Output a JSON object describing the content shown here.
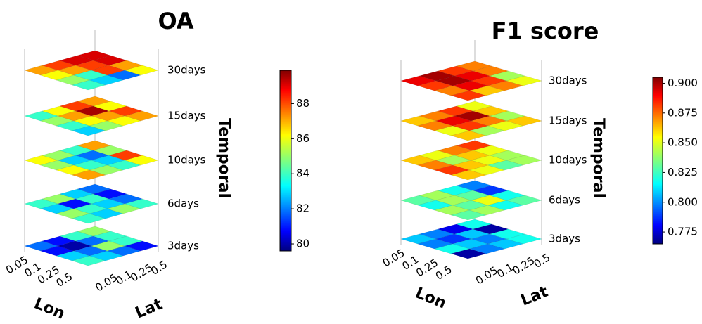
{
  "chart_data": [
    {
      "type": "heatmap3d",
      "title": "OA",
      "x_label": "Lon",
      "y_label": "Lat",
      "z_label": "Temporal",
      "x_categories": [
        "0.05",
        "0.1",
        "0.25",
        "0.5"
      ],
      "y_categories": [
        "0.05",
        "0.1",
        "0.25",
        "0.5"
      ],
      "colormap": "jet",
      "layers": [
        {
          "name": "3days",
          "values": [
            [
              82,
              81,
              84,
              85
            ],
            [
              81,
              80,
              82,
              84
            ],
            [
              83,
              82,
              85,
              84
            ],
            [
              84,
              83,
              82,
              81
            ]
          ]
        },
        {
          "name": "6days",
          "values": [
            [
              84,
              85,
              83,
              82
            ],
            [
              83,
              81,
              84,
              81
            ],
            [
              85,
              84,
              83,
              82
            ],
            [
              84,
              83,
              85,
              84
            ]
          ]
        },
        {
          "name": "10days",
          "values": [
            [
              86,
              85,
              84,
              87
            ],
            [
              85,
              83,
              82,
              85
            ],
            [
              86,
              84,
              83,
              88
            ],
            [
              87,
              85,
              84,
              86
            ]
          ]
        },
        {
          "name": "15days",
          "values": [
            [
              84,
              86,
              88,
              87
            ],
            [
              85,
              87,
              89.5,
              86
            ],
            [
              84,
              86,
              87,
              88
            ],
            [
              83,
              85,
              86,
              87
            ]
          ]
        },
        {
          "name": "30days",
          "values": [
            [
              87,
              88,
              89,
              89
            ],
            [
              86,
              87,
              88,
              89
            ],
            [
              85,
              84,
              88,
              87
            ],
            [
              84,
              83,
              82,
              86
            ]
          ]
        }
      ],
      "clim": [
        79.6,
        89.9
      ],
      "cticks": [
        80,
        82,
        84,
        86,
        88
      ]
    },
    {
      "type": "heatmap3d",
      "title": "F1 score",
      "x_label": "Lon",
      "y_label": "Lat",
      "z_label": "Temporal",
      "x_categories": [
        "0.05",
        "0.1",
        "0.25",
        "0.5"
      ],
      "y_categories": [
        "0.05",
        "0.1",
        "0.25",
        "0.5"
      ],
      "colormap": "jet",
      "layers": [
        {
          "name": "3days",
          "values": [
            [
              0.81,
              0.8,
              0.78,
              0.82
            ],
            [
              0.8,
              0.79,
              0.81,
              0.77
            ],
            [
              0.82,
              0.81,
              0.8,
              0.82
            ],
            [
              0.77,
              0.8,
              0.81,
              0.82
            ]
          ]
        },
        {
          "name": "6days",
          "values": [
            [
              0.83,
              0.84,
              0.82,
              0.8
            ],
            [
              0.82,
              0.84,
              0.83,
              0.79
            ],
            [
              0.84,
              0.83,
              0.85,
              0.82
            ],
            [
              0.83,
              0.84,
              0.82,
              0.83
            ]
          ]
        },
        {
          "name": "10days",
          "values": [
            [
              0.86,
              0.85,
              0.87,
              0.88
            ],
            [
              0.87,
              0.84,
              0.86,
              0.85
            ],
            [
              0.88,
              0.86,
              0.85,
              0.84
            ],
            [
              0.86,
              0.85,
              0.83,
              0.84
            ]
          ]
        },
        {
          "name": "15days",
          "values": [
            [
              0.86,
              0.87,
              0.88,
              0.85
            ],
            [
              0.87,
              0.89,
              0.9,
              0.86
            ],
            [
              0.85,
              0.88,
              0.87,
              0.84
            ],
            [
              0.86,
              0.84,
              0.85,
              0.86
            ]
          ]
        },
        {
          "name": "30days",
          "values": [
            [
              0.89,
              0.9,
              0.88,
              0.87
            ],
            [
              0.88,
              0.9,
              0.89,
              0.87
            ],
            [
              0.87,
              0.89,
              0.88,
              0.84
            ],
            [
              0.88,
              0.86,
              0.87,
              0.85
            ]
          ]
        }
      ],
      "clim": [
        0.765,
        0.905
      ],
      "cticks": [
        0.775,
        {
          "value": 0.8,
          "label": "0.800"
        },
        0.825,
        {
          "value": 0.85,
          "label": "0.850"
        },
        0.875,
        {
          "value": 0.9,
          "label": "0.900"
        }
      ]
    }
  ]
}
